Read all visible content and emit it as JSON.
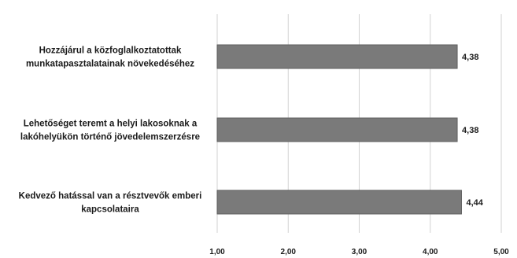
{
  "chart_data": {
    "type": "bar",
    "orientation": "horizontal",
    "categories": [
      [
        "Hozzájárul a közfoglalkoztatottak",
        "munkatapasztalatainak növekedéséhez"
      ],
      [
        "Lehetőséget teremt a helyi lakosoknak a",
        "lakóhelyükön történő jövedelemszerzésre"
      ],
      [
        "Kedvező hatással van a résztvevők emberi",
        "kapcsolataira"
      ]
    ],
    "values": [
      4.38,
      4.38,
      4.44
    ],
    "value_labels": [
      "4,38",
      "4,38",
      "4,44"
    ],
    "xlim": [
      1.0,
      5.0
    ],
    "ticks": [
      1.0,
      2.0,
      3.0,
      4.0,
      5.0
    ],
    "tick_labels": [
      "1,00",
      "2,00",
      "3,00",
      "4,00",
      "5,00"
    ],
    "grid": "vertical",
    "legend": "none",
    "bar_color": "#7a7a7a",
    "grid_color": "#d2d2d2"
  }
}
